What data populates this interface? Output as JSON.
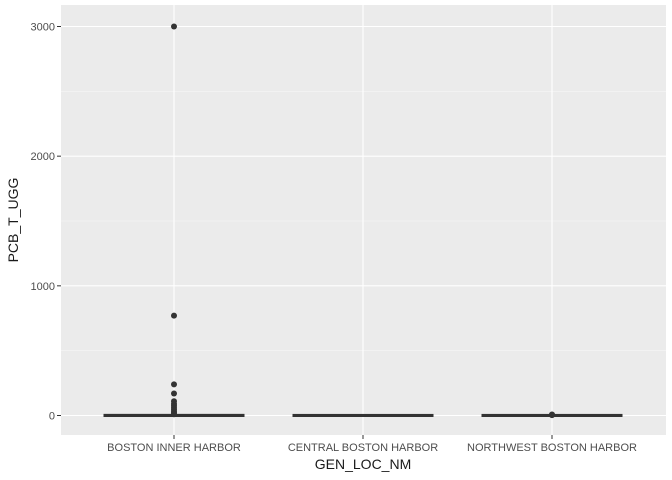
{
  "chart_data": {
    "type": "boxplot",
    "xlabel": "GEN_LOC_NM",
    "ylabel": "PCB_T_UGG",
    "categories": [
      "BOSTON INNER HARBOR",
      "CENTRAL BOSTON HARBOR",
      "NORTHWEST BOSTON HARBOR"
    ],
    "ylim": [
      -150,
      3100
    ],
    "yticks": [
      0,
      1000,
      2000,
      3000
    ],
    "yticklabels": [
      "0",
      "1000",
      "2000",
      "3000"
    ],
    "grid": true,
    "boxes": [
      {
        "category": "BOSTON INNER HARBOR",
        "q1": 0,
        "median": 0.5,
        "q3": 1,
        "whisker_low": 0,
        "whisker_high": 2,
        "outliers": [
          3000,
          770,
          240,
          170,
          110,
          90,
          75,
          60,
          45,
          30,
          20,
          10
        ]
      },
      {
        "category": "CENTRAL BOSTON HARBOR",
        "q1": 0,
        "median": 0.2,
        "q3": 0.5,
        "whisker_low": 0,
        "whisker_high": 1,
        "outliers": []
      },
      {
        "category": "NORTHWEST BOSTON HARBOR",
        "q1": 0,
        "median": 0.3,
        "q3": 0.6,
        "whisker_low": 0,
        "whisker_high": 1,
        "outliers": [
          8,
          5,
          3
        ]
      }
    ],
    "colors": {
      "panel": "#ebebeb",
      "grid_major": "#ffffff",
      "grid_minor": "#f5f5f5",
      "box": "#333333",
      "point": "#333333"
    }
  }
}
